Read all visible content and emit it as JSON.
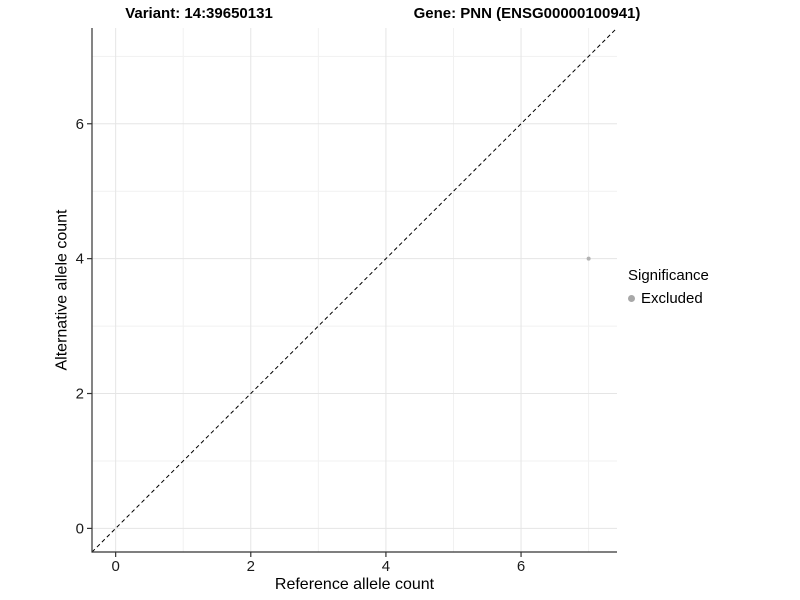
{
  "chart_data": {
    "type": "scatter",
    "title_left": "Variant: 14:39650131",
    "title_right": "Gene: PNN (ENSG00000100941)",
    "xlabel": "Reference allele count",
    "ylabel": "Alternative allele count",
    "xlim": [
      -0.35,
      7.42
    ],
    "ylim": [
      -0.35,
      7.42
    ],
    "x_ticks": [
      0,
      2,
      4,
      6
    ],
    "y_ticks": [
      0,
      2,
      4,
      6
    ],
    "x_tick_labels": [
      "0",
      "2",
      "4",
      "6"
    ],
    "y_tick_labels": [
      "0",
      "2",
      "4",
      "6"
    ],
    "x_minor": [
      1,
      3,
      5,
      7
    ],
    "y_minor": [
      1,
      3,
      5,
      7
    ],
    "grid": "major+minor",
    "identity_line": {
      "slope": 1,
      "intercept": 0,
      "style": "dashed",
      "color": "#000000"
    },
    "series": [
      {
        "name": "Excluded",
        "color": "#b2b2b2",
        "point_radius": 2,
        "points": [
          {
            "x": 7,
            "y": 4
          }
        ]
      }
    ],
    "legend": {
      "position": "right",
      "title": "Significance",
      "items": [
        {
          "label": "Excluded",
          "color": "#a8a8a8"
        }
      ]
    }
  }
}
